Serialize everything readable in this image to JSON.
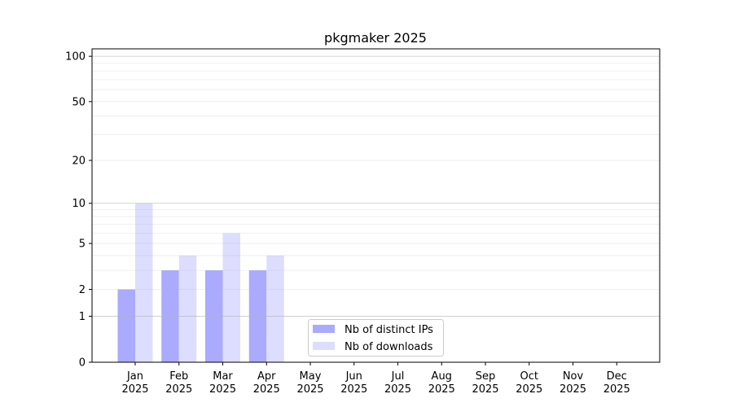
{
  "chart_data": {
    "type": "bar",
    "title": "pkgmaker 2025",
    "xlabel": "",
    "ylabel": "",
    "y_scale": "symlog (log10(1+y))",
    "ylim": [
      0,
      112
    ],
    "y_ticks": [
      0,
      1,
      2,
      5,
      10,
      20,
      50,
      100
    ],
    "grid": true,
    "legend_position": "bottom-center",
    "categories": [
      "Jan\n2025",
      "Feb\n2025",
      "Mar\n2025",
      "Apr\n2025",
      "May\n2025",
      "Jun\n2025",
      "Jul\n2025",
      "Aug\n2025",
      "Sep\n2025",
      "Oct\n2025",
      "Nov\n2025",
      "Dec\n2025"
    ],
    "series": [
      {
        "name": "Nb of distinct IPs",
        "color": "#aaaaff",
        "values": [
          2,
          3,
          3,
          3,
          0,
          0,
          0,
          0,
          0,
          0,
          0,
          0
        ]
      },
      {
        "name": "Nb of downloads",
        "color": "#ddddff",
        "values": [
          10,
          4,
          6,
          4,
          0,
          0,
          0,
          0,
          0,
          0,
          0,
          0
        ]
      }
    ]
  }
}
